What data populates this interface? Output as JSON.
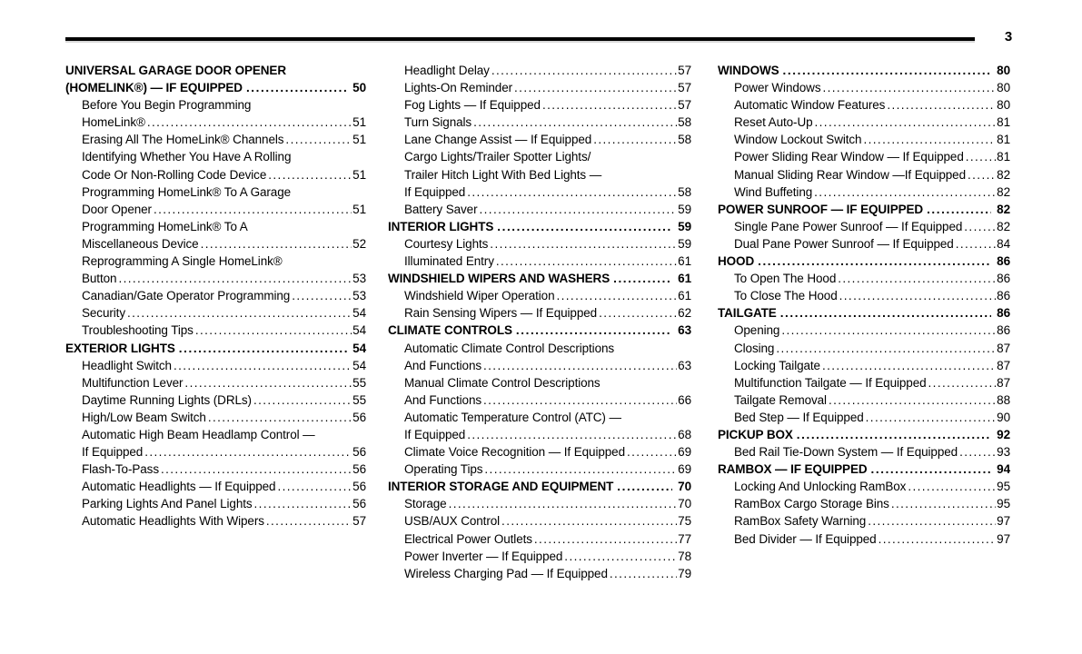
{
  "page": {
    "number": "3"
  },
  "toc": {
    "columns": [
      {
        "lines": [
          {
            "text": "UNIVERSAL GARAGE DOOR OPENER",
            "style": "section"
          },
          {
            "text": "(HOMELINK®) — IF EQUIPPED",
            "page": "50",
            "style": "section"
          },
          {
            "text": "Before You Begin Programming",
            "style": "sub"
          },
          {
            "text": "HomeLink®",
            "page": "51",
            "style": "sub"
          },
          {
            "text": "Erasing All The HomeLink® Channels",
            "page": "51",
            "style": "sub"
          },
          {
            "text": "Identifying Whether You Have A Rolling",
            "style": "sub"
          },
          {
            "text": "Code Or Non-Rolling Code Device",
            "page": "51",
            "style": "sub"
          },
          {
            "text": "Programming HomeLink® To A Garage",
            "style": "sub"
          },
          {
            "text": "Door Opener",
            "page": "51",
            "style": "sub"
          },
          {
            "text": "Programming HomeLink® To A",
            "style": "sub"
          },
          {
            "text": "Miscellaneous Device",
            "page": "52",
            "style": "sub"
          },
          {
            "text": "Reprogramming A Single HomeLink®",
            "style": "sub"
          },
          {
            "text": "Button",
            "page": "53",
            "style": "sub"
          },
          {
            "text": "Canadian/Gate Operator Programming",
            "page": "53",
            "style": "sub"
          },
          {
            "text": "Security",
            "page": "54",
            "style": "sub"
          },
          {
            "text": "Troubleshooting Tips",
            "page": "54",
            "style": "sub"
          },
          {
            "text": "EXTERIOR LIGHTS",
            "page": "54",
            "style": "section"
          },
          {
            "text": "Headlight Switch",
            "page": "54",
            "style": "sub"
          },
          {
            "text": "Multifunction Lever",
            "page": "55",
            "style": "sub"
          },
          {
            "text": "Daytime Running Lights (DRLs)",
            "page": "55",
            "style": "sub"
          },
          {
            "text": "High/Low Beam Switch",
            "page": "56",
            "style": "sub"
          },
          {
            "text": "Automatic High Beam Headlamp Control —",
            "style": "sub"
          },
          {
            "text": "If Equipped",
            "page": "56",
            "style": "sub"
          },
          {
            "text": "Flash-To-Pass",
            "page": "56",
            "style": "sub"
          },
          {
            "text": "Automatic Headlights — If Equipped",
            "page": "56",
            "style": "sub"
          },
          {
            "text": "Parking Lights And Panel Lights",
            "page": "56",
            "style": "sub"
          },
          {
            "text": "Automatic Headlights With Wipers",
            "page": "57",
            "style": "sub"
          }
        ]
      },
      {
        "lines": [
          {
            "text": "Headlight Delay",
            "page": "57",
            "style": "sub"
          },
          {
            "text": "Lights-On Reminder",
            "page": "57",
            "style": "sub"
          },
          {
            "text": "Fog Lights — If Equipped",
            "page": "57",
            "style": "sub"
          },
          {
            "text": "Turn Signals",
            "page": "58",
            "style": "sub"
          },
          {
            "text": "Lane Change Assist — If Equipped",
            "page": "58",
            "style": "sub"
          },
          {
            "text": "Cargo Lights/Trailer Spotter Lights/",
            "style": "sub"
          },
          {
            "text": "Trailer Hitch Light With Bed Lights —",
            "style": "sub"
          },
          {
            "text": "If Equipped",
            "page": "58",
            "style": "sub"
          },
          {
            "text": "Battery Saver",
            "page": "59",
            "style": "sub"
          },
          {
            "text": "INTERIOR LIGHTS",
            "page": "59",
            "style": "section"
          },
          {
            "text": "Courtesy Lights",
            "page": "59",
            "style": "sub"
          },
          {
            "text": "Illuminated Entry",
            "page": "61",
            "style": "sub"
          },
          {
            "text": "WINDSHIELD WIPERS AND WASHERS",
            "page": "61",
            "style": "section"
          },
          {
            "text": "Windshield Wiper Operation",
            "page": "61",
            "style": "sub"
          },
          {
            "text": "Rain Sensing Wipers — If Equipped",
            "page": "62",
            "style": "sub"
          },
          {
            "text": "CLIMATE CONTROLS",
            "page": "63",
            "style": "section"
          },
          {
            "text": "Automatic Climate Control Descriptions",
            "style": "sub"
          },
          {
            "text": "And Functions",
            "page": "63",
            "style": "sub"
          },
          {
            "text": "Manual Climate Control Descriptions",
            "style": "sub"
          },
          {
            "text": "And Functions",
            "page": "66",
            "style": "sub"
          },
          {
            "text": "Automatic Temperature Control (ATC) —",
            "style": "sub"
          },
          {
            "text": "If Equipped",
            "page": "68",
            "style": "sub"
          },
          {
            "text": "Climate Voice Recognition — If Equipped",
            "page": "69",
            "style": "sub"
          },
          {
            "text": "Operating Tips",
            "page": "69",
            "style": "sub"
          },
          {
            "text": "INTERIOR STORAGE AND EQUIPMENT",
            "page": "70",
            "style": "section"
          },
          {
            "text": "Storage",
            "page": "70",
            "style": "sub"
          },
          {
            "text": "USB/AUX Control",
            "page": "75",
            "style": "sub"
          },
          {
            "text": "Electrical Power Outlets",
            "page": "77",
            "style": "sub"
          },
          {
            "text": "Power Inverter — If Equipped",
            "page": "78",
            "style": "sub"
          },
          {
            "text": "Wireless Charging Pad — If Equipped",
            "page": "79",
            "style": "sub"
          }
        ]
      },
      {
        "lines": [
          {
            "text": "WINDOWS",
            "page": "80",
            "style": "section"
          },
          {
            "text": "Power Windows",
            "page": "80",
            "style": "sub"
          },
          {
            "text": "Automatic Window Features",
            "page": "80",
            "style": "sub"
          },
          {
            "text": "Reset Auto-Up",
            "page": "81",
            "style": "sub"
          },
          {
            "text": "Window Lockout Switch",
            "page": "81",
            "style": "sub"
          },
          {
            "text": "Power Sliding Rear Window — If Equipped",
            "page": "81",
            "style": "sub"
          },
          {
            "text": "Manual Sliding Rear Window —If Equipped",
            "page": "82",
            "style": "sub"
          },
          {
            "text": "Wind Buffeting",
            "page": "82",
            "style": "sub"
          },
          {
            "text": "POWER SUNROOF — IF EQUIPPED",
            "page": "82",
            "style": "section"
          },
          {
            "text": "Single Pane Power Sunroof — If Equipped",
            "page": "82",
            "style": "sub"
          },
          {
            "text": "Dual Pane Power Sunroof — If Equipped",
            "page": "84",
            "style": "sub"
          },
          {
            "text": "HOOD",
            "page": "86",
            "style": "section"
          },
          {
            "text": "To Open The Hood",
            "page": "86",
            "style": "sub"
          },
          {
            "text": "To Close The Hood",
            "page": "86",
            "style": "sub"
          },
          {
            "text": "TAILGATE",
            "page": "86",
            "style": "section"
          },
          {
            "text": "Opening",
            "page": "86",
            "style": "sub"
          },
          {
            "text": "Closing",
            "page": "87",
            "style": "sub"
          },
          {
            "text": "Locking Tailgate",
            "page": "87",
            "style": "sub"
          },
          {
            "text": "Multifunction Tailgate — If Equipped",
            "page": "87",
            "style": "sub"
          },
          {
            "text": "Tailgate Removal",
            "page": "88",
            "style": "sub"
          },
          {
            "text": "Bed Step — If Equipped",
            "page": "90",
            "style": "sub"
          },
          {
            "text": "PICKUP BOX",
            "page": "92",
            "style": "section"
          },
          {
            "text": "Bed Rail Tie-Down System — If Equipped",
            "page": "93",
            "style": "sub"
          },
          {
            "text": "RAMBOX — IF EQUIPPED",
            "page": "94",
            "style": "section"
          },
          {
            "text": "Locking And Unlocking RamBox",
            "page": "95",
            "style": "sub"
          },
          {
            "text": "RamBox Cargo Storage Bins",
            "page": "95",
            "style": "sub"
          },
          {
            "text": "RamBox Safety Warning",
            "page": "97",
            "style": "sub"
          },
          {
            "text": "Bed Divider — If Equipped",
            "page": "97",
            "style": "sub"
          }
        ]
      }
    ]
  }
}
